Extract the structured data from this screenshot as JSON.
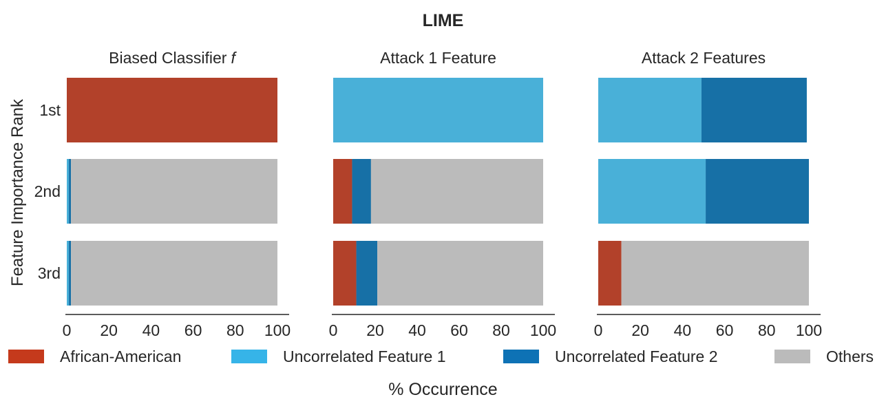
{
  "chart_data": {
    "type": "bar",
    "orientation": "horizontal",
    "stacked": true,
    "title": "LIME",
    "ylabel": "Feature Importance Rank",
    "xlabel": "% Occurrence",
    "categories": [
      "1st",
      "2nd",
      "3rd"
    ],
    "xlim": [
      0,
      100
    ],
    "xticks": [
      "0",
      "20",
      "40",
      "60",
      "80",
      "100"
    ],
    "grid": false,
    "legend_position": "bottom",
    "legend": [
      {
        "name": "African-American",
        "color": "#c53a1c"
      },
      {
        "name": "Uncorrelated Feature 1",
        "color": "#36b4e8"
      },
      {
        "name": "Uncorrelated Feature 2",
        "color": "#0e72b5"
      },
      {
        "name": "Others",
        "color": "#bbbbbb"
      }
    ],
    "panels": [
      {
        "title": "Biased Classifier",
        "title_symbol": "f",
        "series": [
          {
            "name": "African-American",
            "color": "#b2412a",
            "values": [
              100,
              0,
              0
            ]
          },
          {
            "name": "Uncorrelated Feature 1",
            "color": "#49b0d8",
            "values": [
              0,
              1,
              1
            ]
          },
          {
            "name": "Uncorrelated Feature 2",
            "color": "#1770a6",
            "values": [
              0,
              1,
              1
            ]
          },
          {
            "name": "Others",
            "color": "#bbbbbb",
            "values": [
              0,
              98,
              98
            ]
          }
        ]
      },
      {
        "title": "Attack 1 Feature",
        "title_symbol": "",
        "series": [
          {
            "name": "African-American",
            "color": "#b2412a",
            "values": [
              0,
              9,
              11
            ]
          },
          {
            "name": "Uncorrelated Feature 1",
            "color": "#49b0d8",
            "values": [
              100,
              0,
              0
            ]
          },
          {
            "name": "Uncorrelated Feature 2",
            "color": "#1770a6",
            "values": [
              0,
              9,
              10
            ]
          },
          {
            "name": "Others",
            "color": "#bbbbbb",
            "values": [
              0,
              82,
              79
            ]
          }
        ]
      },
      {
        "title": "Attack 2 Features",
        "title_symbol": "",
        "series": [
          {
            "name": "African-American",
            "color": "#b2412a",
            "values": [
              0,
              0,
              11
            ]
          },
          {
            "name": "Uncorrelated Feature 1",
            "color": "#49b0d8",
            "values": [
              49,
              51,
              0
            ]
          },
          {
            "name": "Uncorrelated Feature 2",
            "color": "#1770a6",
            "values": [
              50,
              49,
              0
            ]
          },
          {
            "name": "Others",
            "color": "#bbbbbb",
            "values": [
              0,
              0,
              89
            ]
          }
        ]
      }
    ]
  }
}
